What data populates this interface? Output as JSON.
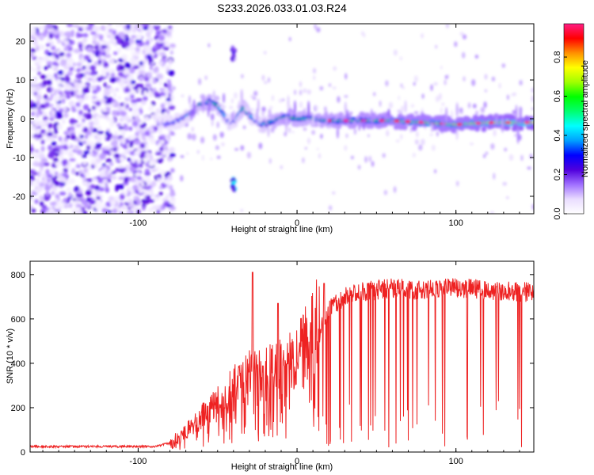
{
  "title": "S233.2026.033.01.03.R24",
  "chart_data": [
    {
      "type": "heatmap",
      "name": "spectrogram",
      "xlabel": "Height of straight line (km)",
      "ylabel": "Frequency (Hz)",
      "xlim": [
        -168,
        149
      ],
      "ylim": [
        -24.5,
        24.5
      ],
      "xticks": [
        -100,
        0,
        100
      ],
      "yticks": [
        -20,
        -10,
        0,
        10,
        20
      ],
      "colorbar": {
        "label": "Normalized spectral amplitude",
        "range": [
          0,
          0.97
        ],
        "ticks": [
          0.0,
          0.2,
          0.4,
          0.6,
          0.8
        ],
        "colormap": [
          "#ffffff",
          "#e9dcff",
          "#a070ff",
          "#5000dd",
          "#0000ff",
          "#00a0ff",
          "#00ffff",
          "#00ff70",
          "#00ff00",
          "#a0ff00",
          "#ffff00",
          "#ff9000",
          "#ff0000",
          "#ff1c84"
        ]
      },
      "noise_region_xlim": [
        -168,
        -84
      ],
      "signal_track": {
        "x": [
          -87,
          -80,
          -72,
          -65,
          -60,
          -55,
          -50,
          -46,
          -42,
          -38,
          -34,
          -30,
          -26,
          -22,
          -18,
          -12,
          -6,
          0,
          10,
          20,
          40,
          60,
          80,
          100,
          120,
          149
        ],
        "freq": [
          -1.5,
          -1.2,
          0,
          2.0,
          4.0,
          4.5,
          3.5,
          1.0,
          -1.5,
          0.0,
          3.0,
          1.0,
          -0.5,
          -1.5,
          -1.0,
          0.0,
          0.5,
          0.0,
          0.0,
          -0.5,
          -0.5,
          -0.5,
          -1.0,
          -1.5,
          -1.0,
          -1.0
        ],
        "amp": [
          0.3,
          0.35,
          0.4,
          0.45,
          0.55,
          0.6,
          0.55,
          0.4,
          0.35,
          0.45,
          0.55,
          0.45,
          0.4,
          0.45,
          0.55,
          0.6,
          0.7,
          0.6,
          0.6,
          0.65,
          0.7,
          0.75,
          0.8,
          0.8,
          0.85,
          0.9
        ]
      },
      "features": [
        {
          "x": -40,
          "freq": -16.5,
          "amp": 0.45,
          "note": "lower sideband burst"
        },
        {
          "x": -40,
          "freq": 17,
          "amp": 0.25,
          "note": "upper sideband burst"
        }
      ]
    },
    {
      "type": "line",
      "name": "snr",
      "xlabel": "Height of straight line (km)",
      "ylabel": "SNR (10 * v/v)",
      "xlim": [
        -168,
        149
      ],
      "ylim": [
        0,
        860
      ],
      "xticks": [
        -100,
        0,
        100
      ],
      "yticks": [
        0,
        200,
        400,
        600,
        800
      ],
      "color": "#ee2222",
      "baseline": {
        "x": [
          -168,
          -90,
          -80,
          -70,
          -60,
          -50,
          -40,
          -30,
          -20,
          -10,
          0,
          10,
          15,
          20,
          30,
          40,
          50,
          60,
          80,
          100,
          120,
          149
        ],
        "snr": [
          25,
          25,
          40,
          80,
          140,
          200,
          250,
          290,
          300,
          330,
          380,
          460,
          560,
          640,
          700,
          720,
          730,
          740,
          730,
          740,
          730,
          720
        ]
      },
      "spikes": [
        {
          "x": -28,
          "snr": 810
        },
        {
          "x": -12,
          "snr": 670
        },
        {
          "x": 17,
          "snr": 760
        }
      ],
      "dropout_start_x": 15
    }
  ]
}
